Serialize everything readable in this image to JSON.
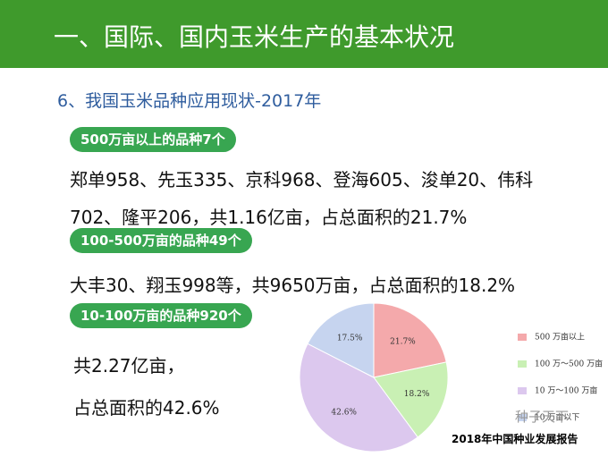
{
  "header": {
    "title": "一、国际、国内玉米生产的基本状况"
  },
  "subtitle": "6、我国玉米品种应用现状-2017年",
  "sections": [
    {
      "badge": "500万亩以上的品种7个",
      "lines": [
        "郑单958、先玉335、京科968、登海605、浚单20、伟科",
        "702、隆平206，共1.16亿亩，占总面积的21.7%"
      ]
    },
    {
      "badge": "100-500万亩的品种49个",
      "lines": [
        "大丰30、翔玉998等，共9650万亩，占总面积的18.2%"
      ]
    },
    {
      "badge": "10-100万亩的品种920个",
      "lines": [
        "共2.27亿亩，",
        "占总面积的42.6%"
      ]
    }
  ],
  "chart_data": {
    "type": "pie",
    "categories": [
      "500 万亩以上",
      "100 万～500 万亩",
      "10 万～100 万亩",
      "10 万亩以下"
    ],
    "values": [
      21.7,
      18.2,
      42.6,
      17.5
    ],
    "value_labels": [
      "21.7%",
      "18.2%",
      "42.6%",
      "17.5%"
    ],
    "colors": [
      "#f4a9ab",
      "#c9f0b4",
      "#dcc8ee",
      "#c6d4ef"
    ],
    "legend": "right"
  },
  "watermark": "种子天下",
  "footer": "2018年中国种业发展报告"
}
